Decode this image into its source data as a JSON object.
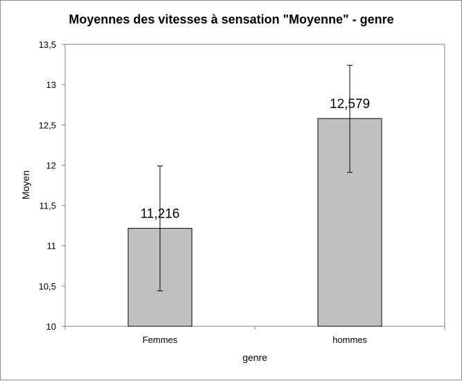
{
  "chart_data": {
    "type": "bar",
    "title": "Moyennes des vitesses à sensation \"Moyenne\" - genre",
    "xlabel": "genre",
    "ylabel": "Moyen",
    "categories": [
      "Femmes",
      "hommes"
    ],
    "values": [
      11.216,
      12.579
    ],
    "data_labels": [
      "11,216",
      "12,579"
    ],
    "error_bars": [
      {
        "low": 10.44,
        "high": 11.99
      },
      {
        "low": 11.91,
        "high": 13.24
      }
    ],
    "ylim": [
      10,
      13.5
    ],
    "y_ticks": [
      10,
      10.5,
      11,
      11.5,
      12,
      12.5,
      13,
      13.5
    ],
    "y_tick_labels": [
      "10",
      "10,5",
      "11",
      "11,5",
      "12",
      "12,5",
      "13",
      "13,5"
    ],
    "grid": false,
    "legend": "none",
    "colors": {
      "bar_fill": "#c0c0c0",
      "bar_stroke": "#000000",
      "axis": "#808080",
      "frame": "#8c8c8c"
    }
  }
}
